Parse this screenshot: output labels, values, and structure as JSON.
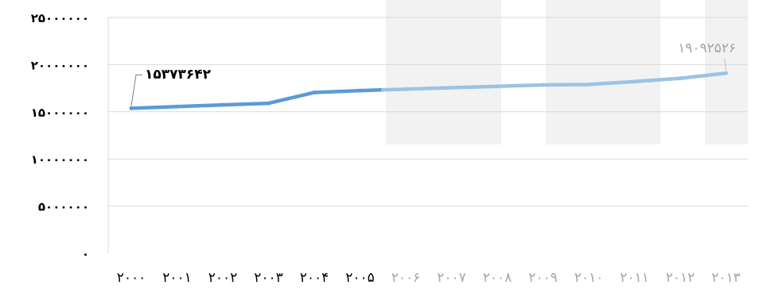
{
  "chart_data": {
    "type": "line",
    "title": "",
    "xlabel": "",
    "ylabel": "",
    "categories": [
      "۲۰۰۰",
      "۲۰۰۱",
      "۲۰۰۲",
      "۲۰۰۳",
      "۲۰۰۴",
      "۲۰۰۵",
      "۲۰۰۶",
      "۲۰۰۷",
      "۲۰۰۸",
      "۲۰۰۹",
      "۲۰۱۰",
      "۲۰۱۱",
      "۲۰۱۲",
      "۲۰۱۳"
    ],
    "series": [
      {
        "values": [
          15373642,
          15550000,
          15730000,
          15900000,
          17050000,
          17250000,
          17400000,
          17550000,
          17700000,
          17850000,
          17900000,
          18200000,
          18550000,
          19092526
        ]
      }
    ],
    "y_ticks": [
      0,
      5000000,
      10000000,
      15000000,
      20000000,
      25000000
    ],
    "y_tick_labels": [
      "۰",
      "۵۰۰۰۰۰۰",
      "۱۰۰۰۰۰۰۰",
      "۱۵۰۰۰۰۰۰",
      "۲۰۰۰۰۰۰۰",
      "۲۵۰۰۰۰۰۰"
    ],
    "ylim": [
      0,
      25000000
    ],
    "grid": "horizontal",
    "legend": "none",
    "data_labels": [
      {
        "index": 0,
        "text": "۱۵۳۷۳۶۴۲"
      },
      {
        "index": 13,
        "text": "۱۹۰۹۲۵۲۶"
      }
    ],
    "colors": {
      "line_dark": "#5b9bd5",
      "line_light": "#9cc3e6",
      "text_dark": "#000000",
      "text_light": "#a6a6a6",
      "grid": "#d9d9d9",
      "band": "#f2f2f2"
    }
  }
}
